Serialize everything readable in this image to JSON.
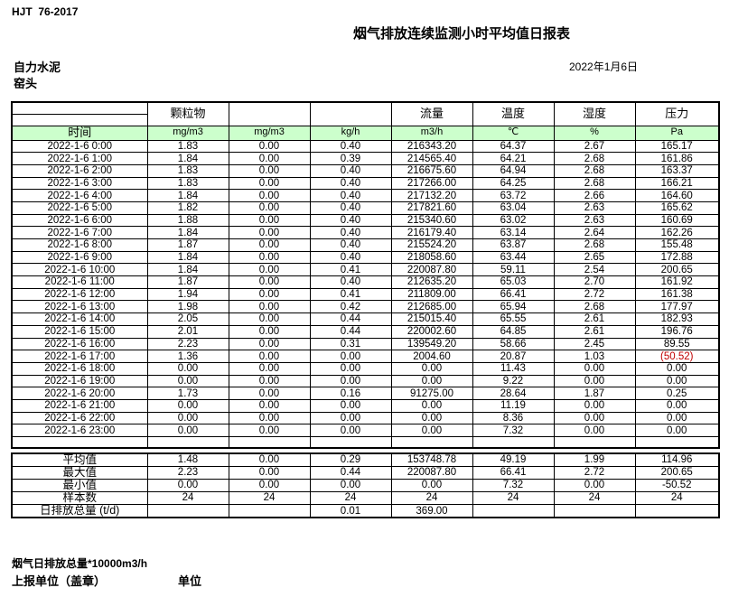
{
  "page": {
    "doc_code": "HJT  76-2017",
    "title": "烟气排放连续监测小时平均值日报表",
    "company": "自力水泥",
    "site": "窑头",
    "date": "2022年1月6日"
  },
  "table": {
    "group_headers": [
      "",
      "颗粒物",
      "",
      "",
      "流量",
      "温度",
      "湿度",
      "压力"
    ],
    "unit_row": {
      "time_label": "时间",
      "units": [
        "mg/m3",
        "mg/m3",
        "kg/h",
        "m3/h",
        "℃",
        "%",
        "Pa"
      ]
    },
    "rows": [
      {
        "time": "2022-1-6 0:00",
        "values": [
          "1.83",
          "0.00",
          "0.40",
          "216343.20",
          "64.37",
          "2.67",
          "165.17"
        ]
      },
      {
        "time": "2022-1-6 1:00",
        "values": [
          "1.84",
          "0.00",
          "0.39",
          "214565.40",
          "64.21",
          "2.68",
          "161.86"
        ]
      },
      {
        "time": "2022-1-6 2:00",
        "values": [
          "1.83",
          "0.00",
          "0.40",
          "216675.60",
          "64.94",
          "2.68",
          "163.37"
        ]
      },
      {
        "time": "2022-1-6 3:00",
        "values": [
          "1.83",
          "0.00",
          "0.40",
          "217266.00",
          "64.25",
          "2.68",
          "166.21"
        ]
      },
      {
        "time": "2022-1-6 4:00",
        "values": [
          "1.84",
          "0.00",
          "0.40",
          "217132.20",
          "63.72",
          "2.66",
          "164.60"
        ]
      },
      {
        "time": "2022-1-6 5:00",
        "values": [
          "1.82",
          "0.00",
          "0.40",
          "217821.60",
          "63.04",
          "2.63",
          "165.62"
        ]
      },
      {
        "time": "2022-1-6 6:00",
        "values": [
          "1.88",
          "0.00",
          "0.40",
          "215340.60",
          "63.02",
          "2.63",
          "160.69"
        ]
      },
      {
        "time": "2022-1-6 7:00",
        "values": [
          "1.84",
          "0.00",
          "0.40",
          "216179.40",
          "63.14",
          "2.64",
          "162.26"
        ]
      },
      {
        "time": "2022-1-6 8:00",
        "values": [
          "1.87",
          "0.00",
          "0.40",
          "215524.20",
          "63.87",
          "2.68",
          "155.48"
        ]
      },
      {
        "time": "2022-1-6 9:00",
        "values": [
          "1.84",
          "0.00",
          "0.40",
          "218058.60",
          "63.44",
          "2.65",
          "172.88"
        ]
      },
      {
        "time": "2022-1-6 10:00",
        "values": [
          "1.84",
          "0.00",
          "0.41",
          "220087.80",
          "59.11",
          "2.54",
          "200.65"
        ]
      },
      {
        "time": "2022-1-6 11:00",
        "values": [
          "1.87",
          "0.00",
          "0.40",
          "212635.20",
          "65.03",
          "2.70",
          "161.92"
        ]
      },
      {
        "time": "2022-1-6 12:00",
        "values": [
          "1.94",
          "0.00",
          "0.41",
          "211809.00",
          "66.41",
          "2.72",
          "161.38"
        ]
      },
      {
        "time": "2022-1-6 13:00",
        "values": [
          "1.98",
          "0.00",
          "0.42",
          "212685.00",
          "65.94",
          "2.68",
          "177.97"
        ]
      },
      {
        "time": "2022-1-6 14:00",
        "values": [
          "2.05",
          "0.00",
          "0.44",
          "215015.40",
          "65.55",
          "2.61",
          "182.93"
        ]
      },
      {
        "time": "2022-1-6 15:00",
        "values": [
          "2.01",
          "0.00",
          "0.44",
          "220002.60",
          "64.85",
          "2.61",
          "196.76"
        ]
      },
      {
        "time": "2022-1-6 16:00",
        "values": [
          "2.23",
          "0.00",
          "0.31",
          "139549.20",
          "58.66",
          "2.45",
          "89.55"
        ]
      },
      {
        "time": "2022-1-6 17:00",
        "values": [
          "1.36",
          "0.00",
          "0.00",
          "2004.60",
          "20.87",
          "1.03",
          "(50.52)"
        ],
        "red_cols": [
          6
        ]
      },
      {
        "time": "2022-1-6 18:00",
        "values": [
          "0.00",
          "0.00",
          "0.00",
          "0.00",
          "11.43",
          "0.00",
          "0.00"
        ]
      },
      {
        "time": "2022-1-6 19:00",
        "values": [
          "0.00",
          "0.00",
          "0.00",
          "0.00",
          "9.22",
          "0.00",
          "0.00"
        ]
      },
      {
        "time": "2022-1-6 20:00",
        "values": [
          "1.73",
          "0.00",
          "0.16",
          "91275.00",
          "28.64",
          "1.87",
          "0.25"
        ]
      },
      {
        "time": "2022-1-6 21:00",
        "values": [
          "0.00",
          "0.00",
          "0.00",
          "0.00",
          "11.19",
          "0.00",
          "0.00"
        ]
      },
      {
        "time": "2022-1-6 22:00",
        "values": [
          "0.00",
          "0.00",
          "0.00",
          "0.00",
          "8.36",
          "0.00",
          "0.00"
        ]
      },
      {
        "time": "2022-1-6 23:00",
        "values": [
          "0.00",
          "0.00",
          "0.00",
          "0.00",
          "7.32",
          "0.00",
          "0.00"
        ]
      }
    ],
    "summary": [
      {
        "label": "平均值",
        "values": [
          "1.48",
          "0.00",
          "0.29",
          "153748.78",
          "49.19",
          "1.99",
          "114.96"
        ]
      },
      {
        "label": "最大值",
        "values": [
          "2.23",
          "0.00",
          "0.44",
          "220087.80",
          "66.41",
          "2.72",
          "200.65"
        ]
      },
      {
        "label": "最小值",
        "values": [
          "0.00",
          "0.00",
          "0.00",
          "0.00",
          "7.32",
          "0.00",
          "-50.52"
        ]
      },
      {
        "label": "样本数",
        "values": [
          "24",
          "24",
          "24",
          "24",
          "24",
          "24",
          "24"
        ]
      },
      {
        "label": "日排放总量 (t/d)",
        "values": [
          "",
          "",
          "0.01",
          "369.00",
          "",
          "",
          ""
        ]
      }
    ]
  },
  "footer": {
    "note": "烟气日排放总量*10000m3/h",
    "stamp_label": "上报单位（盖章）",
    "unit_label": "单位"
  },
  "colors": {
    "header_green": "#ccffcc",
    "negative_red": "#c00000"
  }
}
